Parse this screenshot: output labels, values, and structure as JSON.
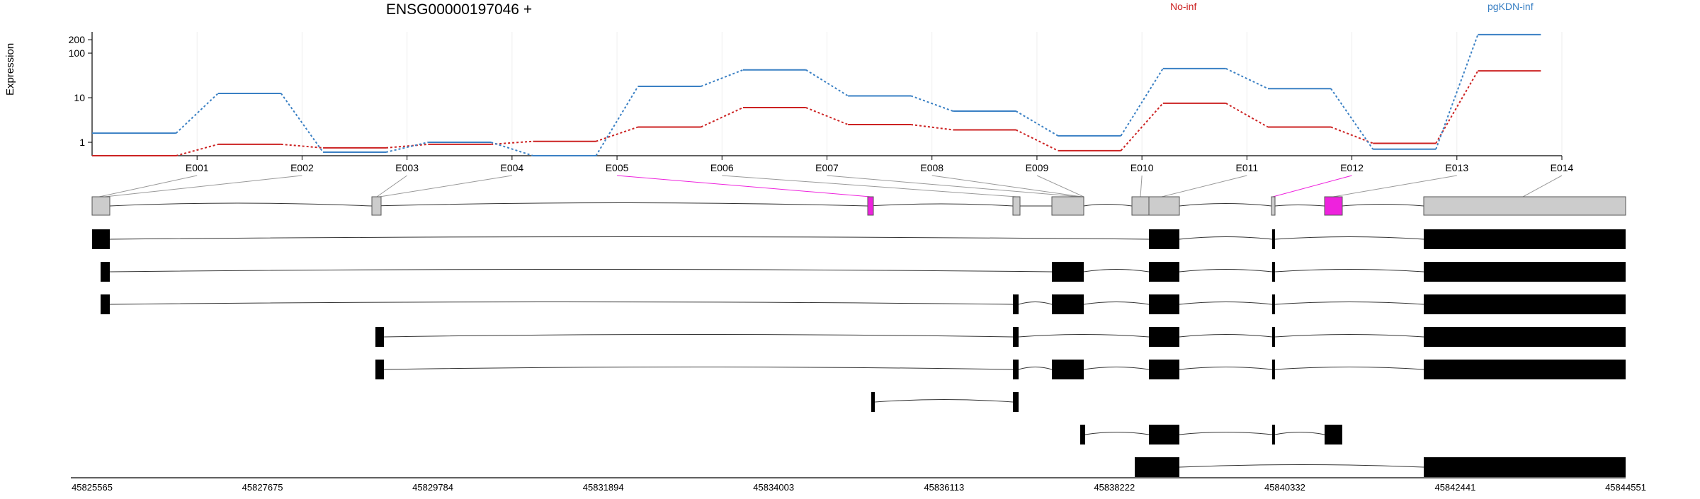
{
  "chart_data": {
    "type": "line",
    "title": "ENSG00000197046 +",
    "ylabel": "Expression",
    "xlabel": "",
    "y_scale": "log",
    "yticks": [
      1,
      10,
      100,
      200
    ],
    "ytick_labels": [
      "1",
      "10",
      "100",
      "200"
    ],
    "ylim": [
      0.5,
      300
    ],
    "grid": true,
    "legend_placement": "top",
    "categories": [
      "E001",
      "E002",
      "E003",
      "E004",
      "E005",
      "E006",
      "E007",
      "E008",
      "E009",
      "E010",
      "E011",
      "E012",
      "E013",
      "E014"
    ],
    "series": [
      {
        "name": "No-inf",
        "color": "#cc2222",
        "values": [
          0.5,
          0.9,
          0.75,
          0.9,
          1.05,
          2.2,
          6.0,
          2.5,
          1.9,
          0.65,
          7.5,
          2.2,
          0.95,
          40
        ]
      },
      {
        "name": "pgKDN-inf",
        "color": "#3a80c4",
        "values": [
          1.6,
          12.5,
          0.6,
          1.0,
          0.5,
          18,
          42,
          11,
          5.0,
          1.4,
          45,
          16,
          0.7,
          260
        ]
      }
    ],
    "gene_model": {
      "genomic_ticks": [
        "45825565",
        "45827675",
        "45829784",
        "45831894",
        "45834003",
        "45836113",
        "45838222",
        "45840332",
        "45842441",
        "45844551"
      ],
      "highlight_color": "#ee22dd",
      "highlighted_exons": [
        "E005",
        "E012"
      ]
    }
  }
}
